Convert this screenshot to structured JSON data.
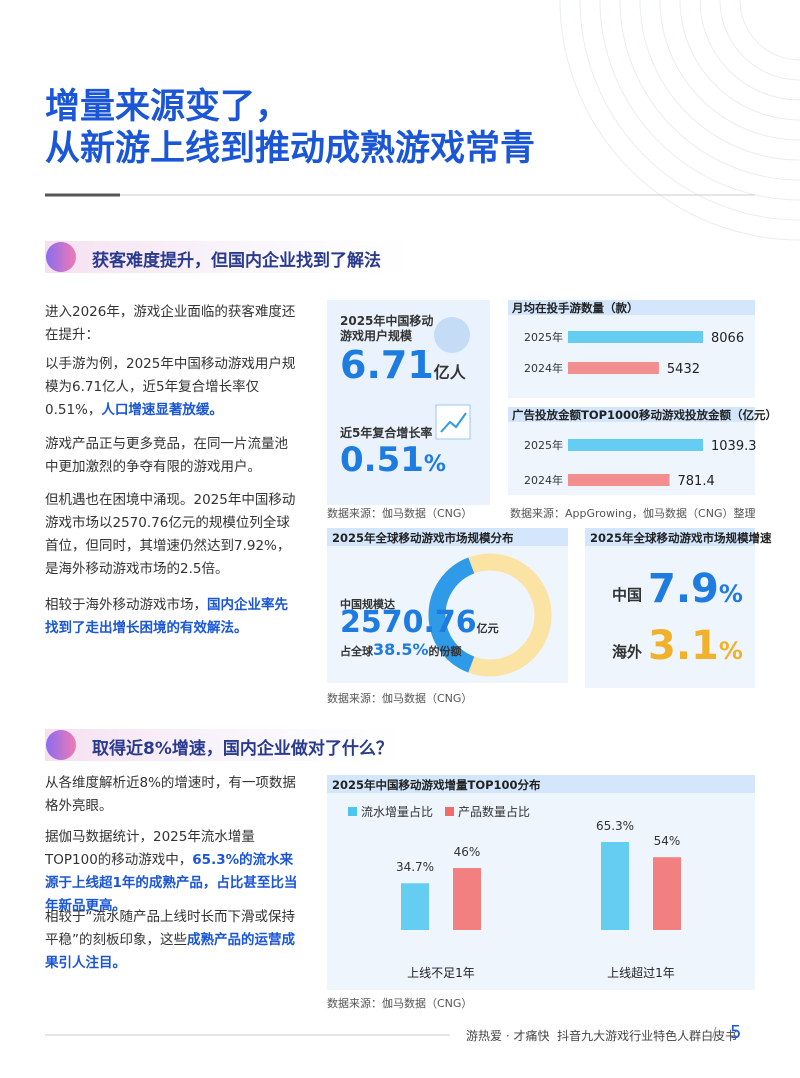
{
  "header": {
    "title_lines": [
      "增量来源变了，",
      "从新游上线到推动成熟游戏常青"
    ]
  },
  "section1": {
    "heading": "获客难度提升，但国内企业找到了解法",
    "paragraphs": [
      [
        {
          "text": "进入2026年，游戏企业面临的获客难度还在提升：",
          "bold": false
        }
      ],
      [
        {
          "text": "以手游为例，2025年中国移动游戏用户规模为6.71亿人，近5年复合增长率仅0.51%，",
          "bold": false
        },
        {
          "text": "人口增速显著放缓。",
          "bold": true
        }
      ],
      [
        {
          "text": "游戏产品正与更多竞品，在同一片流量池中更加激烈的争夺有限的游戏用户。",
          "bold": false
        }
      ],
      [
        {
          "text": "但机遇也在困境中涌现。2025年中国移动游戏市场以2570.76亿元的规模位列全球首位，但同时，其增速仍然达到7.92%，是海外移动游戏市场的2.5倍。",
          "bold": false
        }
      ],
      [
        {
          "text": "相较于海外移动游戏市场，",
          "bold": false
        },
        {
          "text": "国内企业率先找到了走出增长困境的有效解法。",
          "bold": true
        }
      ]
    ],
    "user_card": {
      "title": "2025年中国移动游戏用户规模",
      "value": "6.71",
      "unit": "亿人",
      "growth_label": "近5年复合增长率",
      "growth_value": "0.51",
      "growth_unit": "%",
      "source": "数据来源：伽马数据（CNG）"
    },
    "bar_panels": [
      {
        "title": "月均在投手游数量（款）",
        "categories": [
          "2025年",
          "2024年"
        ],
        "values": [
          8066,
          5432
        ],
        "colors": [
          "#4cc6f0",
          "#f47a7a"
        ]
      },
      {
        "title": "广告投放金额TOP1000移动游戏投放金额（亿元）",
        "categories": [
          "2025年",
          "2024年"
        ],
        "values": [
          1039.3,
          781.4
        ],
        "colors": [
          "#4cc6f0",
          "#f47a7a"
        ]
      }
    ],
    "bar_source": "数据来源：AppGrowing，伽马数据（CNG）整理",
    "donut": {
      "title": "2025年全球移动游戏市场规模分布",
      "label": "中国规模达",
      "value": "2570.76",
      "unit": "亿元",
      "share_prefix": "占全球",
      "share": 38.5,
      "share_label": "38.5%",
      "share_suffix": "的份额",
      "colors": [
        "#2e9ae8",
        "#fbe3a3"
      ],
      "source": "数据来源：伽马数据（CNG）"
    },
    "growth": {
      "title": "2025年全球移动游戏市场规模增速",
      "rows": [
        {
          "name": "中国",
          "value": "7.9",
          "unit": "%"
        },
        {
          "name": "海外",
          "value": "3.1",
          "unit": "%"
        }
      ]
    }
  },
  "section2": {
    "heading": "取得近8%增速，国内企业做对了什么？",
    "paragraphs": [
      [
        {
          "text": "从各维度解析近8%的增速时，有一项数据格外亮眼。",
          "bold": false
        }
      ],
      [
        {
          "text": "据伽马数据统计，2025年流水增量TOP100的移动游戏中，",
          "bold": false
        },
        {
          "text": "65.3%的流水来源于上线超1年的成熟产品，占比甚至比当年新品更高。",
          "bold": true
        }
      ],
      [
        {
          "text": "相较于“流水随产品上线时长而下滑或保持平稳”的刻板印象，这些",
          "bold": false
        },
        {
          "text": "成熟产品的运营成果引人注目。",
          "bold": true
        }
      ]
    ],
    "chart": {
      "title": "2025年中国移动游戏增量TOP100分布",
      "categories": [
        "上线不足1年",
        "上线超过1年"
      ],
      "series": [
        {
          "name": "流水增量占比",
          "color": "#4cc6f0",
          "values": [
            34.7,
            65.3
          ],
          "value_labels": [
            "34.7%",
            "65.3%"
          ]
        },
        {
          "name": "产品数量占比",
          "color": "#f26b6b",
          "values": [
            46,
            54
          ],
          "value_labels": [
            "46%",
            "54%"
          ]
        }
      ],
      "source": "数据来源：伽马数据（CNG）"
    }
  },
  "footer": {
    "text": "游热爱 · 才痛快  抖音九大游戏行业特色人群白皮书",
    "separator": "/",
    "page": "5"
  }
}
